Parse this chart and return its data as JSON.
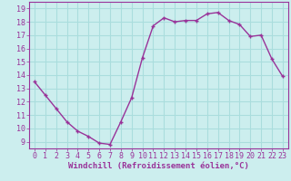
{
  "x": [
    0,
    1,
    2,
    3,
    4,
    5,
    6,
    7,
    8,
    9,
    10,
    11,
    12,
    13,
    14,
    15,
    16,
    17,
    18,
    19,
    20,
    21,
    22,
    23
  ],
  "y": [
    13.5,
    12.5,
    11.5,
    10.5,
    9.8,
    9.4,
    8.9,
    8.8,
    10.5,
    12.3,
    15.3,
    17.7,
    18.3,
    18.0,
    18.1,
    18.1,
    18.6,
    18.7,
    18.1,
    17.8,
    16.9,
    17.0,
    15.2,
    13.9
  ],
  "line_color": "#993399",
  "marker": "+",
  "marker_size": 3,
  "background_color": "#cceeee",
  "grid_color": "#aadddd",
  "xlabel": "Windchill (Refroidissement éolien,°C)",
  "ylabel": "",
  "title": "",
  "xlim": [
    -0.5,
    23.5
  ],
  "ylim": [
    8.5,
    19.5
  ],
  "yticks": [
    9,
    10,
    11,
    12,
    13,
    14,
    15,
    16,
    17,
    18,
    19
  ],
  "xticks": [
    0,
    1,
    2,
    3,
    4,
    5,
    6,
    7,
    8,
    9,
    10,
    11,
    12,
    13,
    14,
    15,
    16,
    17,
    18,
    19,
    20,
    21,
    22,
    23
  ],
  "xlabel_fontsize": 6.5,
  "tick_fontsize": 6,
  "line_width": 1.0,
  "marker_edge_width": 1.0
}
